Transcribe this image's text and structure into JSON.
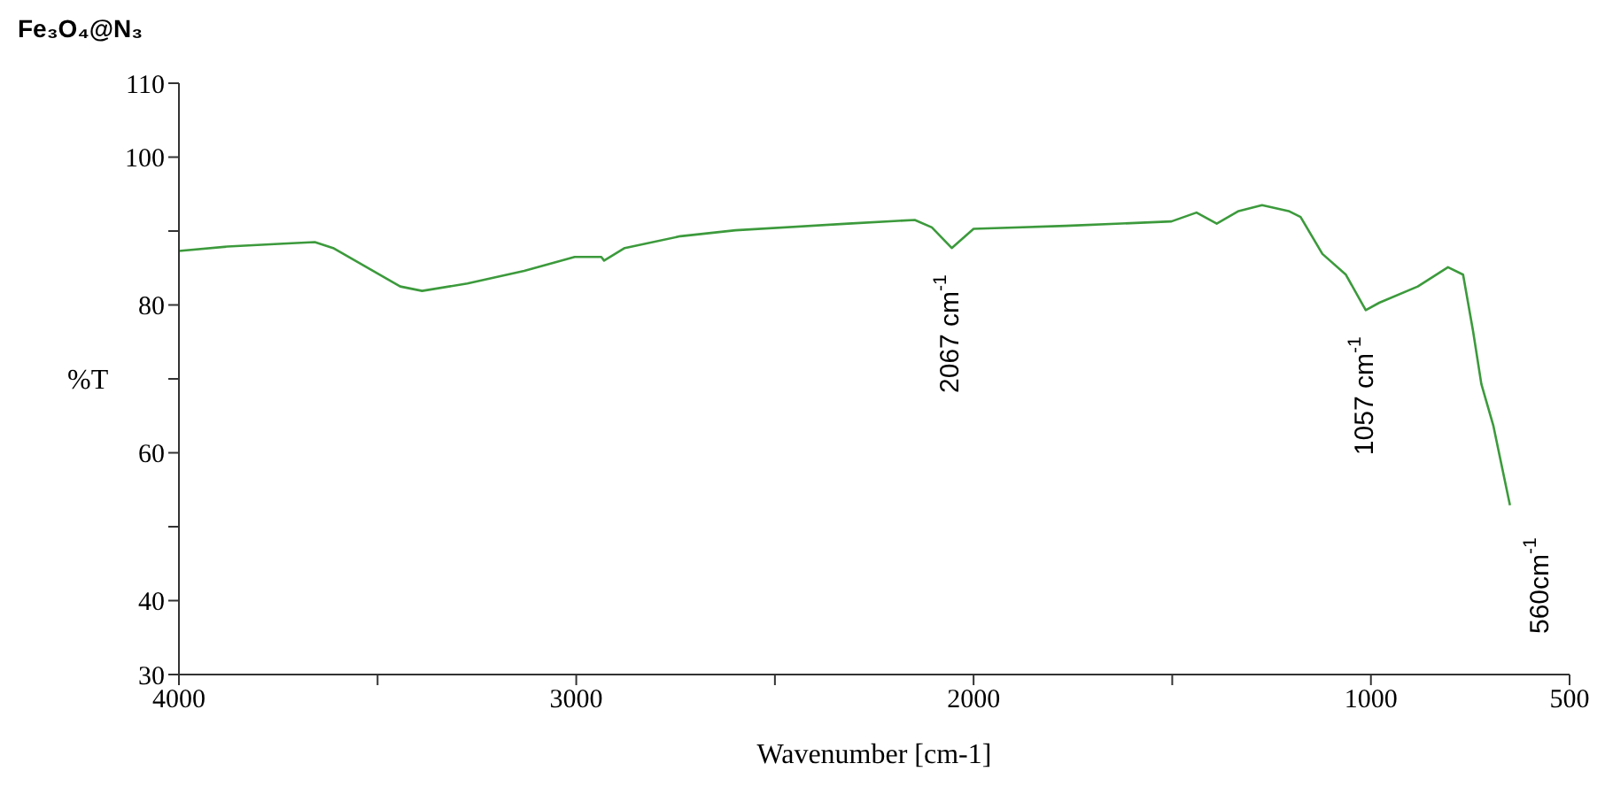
{
  "chart_data": {
    "type": "line",
    "title": "Fe₃O₄@N₃",
    "xlabel": "Wavenumber [cm-1]",
    "ylabel": "%T",
    "annotations": [
      {
        "text": "2067 cm$^{-1}$",
        "x": 2055,
        "y": 87.7
      },
      {
        "text": "1057 cm$^{-1}$",
        "x": 1013,
        "y": 79.3
      },
      "560cm$^{-1}$"
    ],
    "x": [
      4000,
      3878,
      3738,
      3658,
      3612,
      3443,
      3388,
      3274,
      3131,
      3004,
      2937,
      2930,
      2878,
      2738,
      2599,
      2316,
      2148,
      2105,
      2055,
      2000,
      1768,
      1502,
      1439,
      1388,
      1333,
      1274,
      1207,
      1177,
      1122,
      1063,
      1013,
      979,
      882,
      806,
      768,
      743,
      722,
      692,
      650
    ],
    "series": [
      {
        "color": "#3c9a3c",
        "values": [
          87.3,
          87.9,
          88.3,
          88.5,
          87.7,
          82.5,
          81.9,
          82.9,
          84.6,
          86.5,
          86.5,
          86.0,
          87.7,
          89.3,
          90.1,
          91.0,
          91.5,
          90.5,
          87.7,
          90.3,
          90.7,
          91.3,
          92.5,
          91.0,
          92.7,
          93.5,
          92.7,
          91.9,
          86.9,
          84.1,
          79.3,
          80.3,
          82.5,
          85.1,
          84.1,
          76.5,
          69.3,
          63.7,
          52.9
        ]
      }
    ],
    "xlim": [
      4000,
      500
    ],
    "xticks": [
      4000,
      {
        "value": 3500,
        "label": null
      },
      3000,
      {
        "value": 2500,
        "label": null
      },
      2000,
      {
        "value": 1500,
        "label": null
      },
      1000,
      500
    ],
    "ylim": [
      30,
      110
    ],
    "yticks": [
      30,
      40,
      {
        "value": 50,
        "label": null
      },
      60,
      {
        "value": 70,
        "label": null
      },
      80,
      {
        "value": 90,
        "label": null
      },
      100,
      110
    ]
  }
}
